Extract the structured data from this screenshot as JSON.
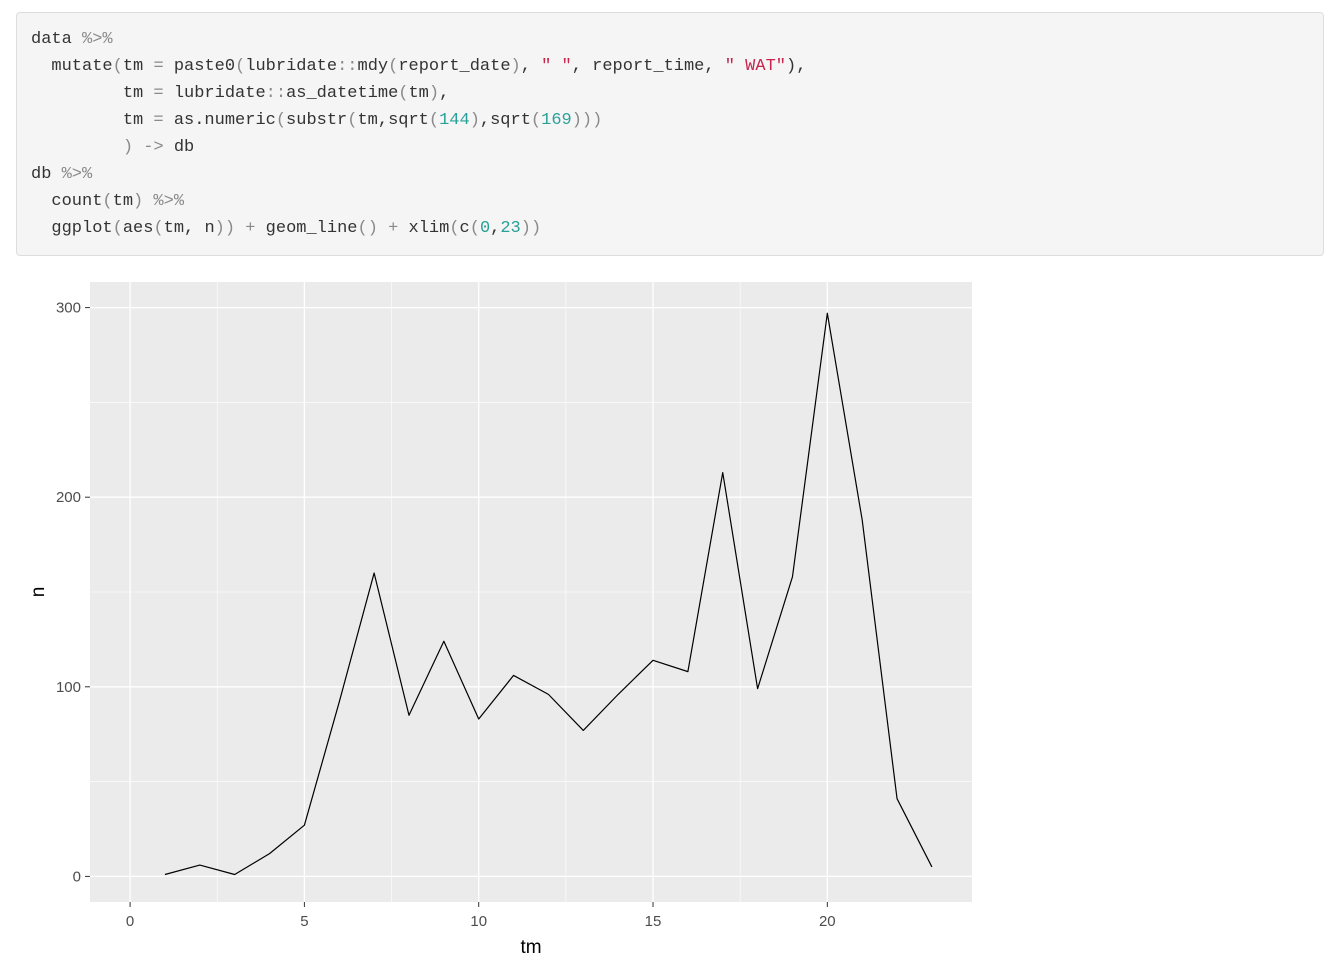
{
  "code": {
    "lines": [
      [
        {
          "t": "data ",
          "c": ""
        },
        {
          "t": "%>%",
          "c": "op"
        }
      ],
      [
        {
          "t": "  mutate",
          "c": ""
        },
        {
          "t": "(",
          "c": "op"
        },
        {
          "t": "tm ",
          "c": ""
        },
        {
          "t": "=",
          "c": "op"
        },
        {
          "t": " paste0",
          "c": ""
        },
        {
          "t": "(",
          "c": "op"
        },
        {
          "t": "lubridate",
          "c": ""
        },
        {
          "t": "::",
          "c": "op"
        },
        {
          "t": "mdy",
          "c": ""
        },
        {
          "t": "(",
          "c": "op"
        },
        {
          "t": "report_date",
          "c": ""
        },
        {
          "t": ")",
          "c": "op"
        },
        {
          "t": ", ",
          "c": ""
        },
        {
          "t": "\" \"",
          "c": "str"
        },
        {
          "t": ", report_time, ",
          "c": ""
        },
        {
          "t": "\" WAT\"",
          "c": "str"
        },
        {
          "t": "),",
          "c": ""
        }
      ],
      [
        {
          "t": "         tm ",
          "c": ""
        },
        {
          "t": "=",
          "c": "op"
        },
        {
          "t": " lubridate",
          "c": ""
        },
        {
          "t": "::",
          "c": "op"
        },
        {
          "t": "as_datetime",
          "c": ""
        },
        {
          "t": "(",
          "c": "op"
        },
        {
          "t": "tm",
          "c": ""
        },
        {
          "t": ")",
          "c": "op"
        },
        {
          "t": ",",
          "c": ""
        }
      ],
      [
        {
          "t": "         tm ",
          "c": ""
        },
        {
          "t": "=",
          "c": "op"
        },
        {
          "t": " as.numeric",
          "c": ""
        },
        {
          "t": "(",
          "c": "op"
        },
        {
          "t": "substr",
          "c": ""
        },
        {
          "t": "(",
          "c": "op"
        },
        {
          "t": "tm,sqrt",
          "c": ""
        },
        {
          "t": "(",
          "c": "op"
        },
        {
          "t": "144",
          "c": "num"
        },
        {
          "t": ")",
          "c": "op"
        },
        {
          "t": ",sqrt",
          "c": ""
        },
        {
          "t": "(",
          "c": "op"
        },
        {
          "t": "169",
          "c": "num"
        },
        {
          "t": ")))",
          "c": "op"
        }
      ],
      [
        {
          "t": "         ",
          "c": ""
        },
        {
          "t": ") ->",
          "c": "op"
        },
        {
          "t": " db",
          "c": ""
        }
      ],
      [
        {
          "t": "db ",
          "c": ""
        },
        {
          "t": "%>%",
          "c": "op"
        }
      ],
      [
        {
          "t": "  count",
          "c": ""
        },
        {
          "t": "(",
          "c": "op"
        },
        {
          "t": "tm",
          "c": ""
        },
        {
          "t": ")",
          "c": "op"
        },
        {
          "t": " %>%",
          "c": "op"
        }
      ],
      [
        {
          "t": "  ggplot",
          "c": ""
        },
        {
          "t": "(",
          "c": "op"
        },
        {
          "t": "aes",
          "c": ""
        },
        {
          "t": "(",
          "c": "op"
        },
        {
          "t": "tm, n",
          "c": ""
        },
        {
          "t": "))",
          "c": "op"
        },
        {
          "t": " + ",
          "c": "op"
        },
        {
          "t": "geom_line",
          "c": ""
        },
        {
          "t": "()",
          "c": "op"
        },
        {
          "t": " + ",
          "c": "op"
        },
        {
          "t": "xlim",
          "c": ""
        },
        {
          "t": "(",
          "c": "op"
        },
        {
          "t": "c",
          "c": ""
        },
        {
          "t": "(",
          "c": "op"
        },
        {
          "t": "0",
          "c": "num"
        },
        {
          "t": ",",
          "c": ""
        },
        {
          "t": "23",
          "c": "num"
        },
        {
          "t": "))",
          "c": "op"
        }
      ]
    ]
  },
  "chart_data": {
    "type": "line",
    "title": "",
    "xlabel": "tm",
    "ylabel": "n",
    "xlim": [
      0,
      23
    ],
    "ylim": [
      0,
      300
    ],
    "xticks": [
      0,
      5,
      10,
      15,
      20
    ],
    "yticks": [
      0,
      100,
      200,
      300
    ],
    "grid": true,
    "series": [
      {
        "x": [
          1,
          2,
          3,
          4,
          5,
          6,
          7,
          8,
          9,
          10,
          11,
          12,
          13,
          14,
          15,
          16,
          17,
          18,
          19,
          20,
          21,
          22,
          23
        ],
        "values": [
          1,
          6,
          1,
          12,
          27,
          92,
          160,
          85,
          124,
          83,
          106,
          96,
          77,
          96,
          114,
          108,
          213,
          99,
          158,
          297,
          188,
          41,
          5
        ]
      }
    ],
    "colors": {
      "panel": "#ebebeb",
      "grid": "#ffffff",
      "line": "#000000",
      "tick_text": "#4d4d4d"
    }
  }
}
